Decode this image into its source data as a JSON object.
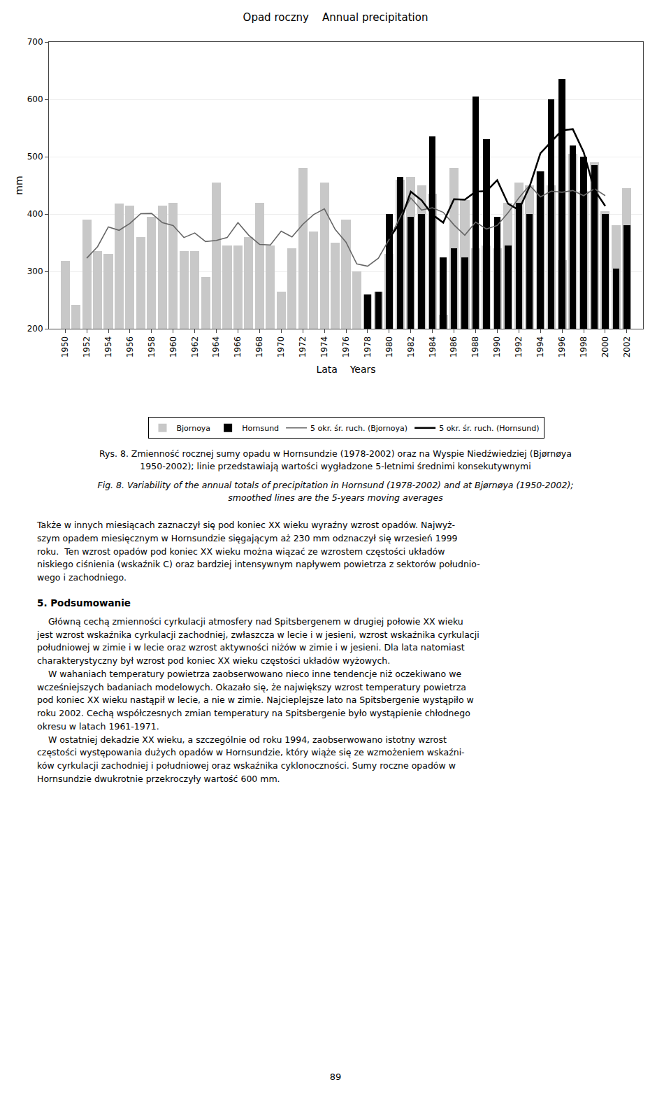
{
  "chart_data": {
    "type": "bar",
    "title": "Opad roczny    Annual precipitation",
    "xlabel": "Lata    Years",
    "ylabel": "mm",
    "xlim": [
      1948.5,
      2003.5
    ],
    "xticks": [
      1950,
      1952,
      1954,
      1956,
      1958,
      1960,
      1962,
      1964,
      1966,
      1968,
      1970,
      1972,
      1974,
      1976,
      1978,
      1980,
      1982,
      1984,
      1986,
      1988,
      1990,
      1992,
      1994,
      1996,
      1998,
      2000,
      2002
    ],
    "ylim": [
      200,
      700
    ],
    "yticks": [
      200,
      300,
      400,
      500,
      600,
      700
    ],
    "grid": "y",
    "legend": "bottom",
    "series": [
      {
        "name": "Bjornoya",
        "type": "bar",
        "color": "#c8c8c8",
        "x": [
          1950,
          1951,
          1952,
          1953,
          1954,
          1955,
          1956,
          1957,
          1958,
          1959,
          1960,
          1961,
          1962,
          1963,
          1964,
          1965,
          1966,
          1967,
          1968,
          1969,
          1970,
          1971,
          1972,
          1973,
          1974,
          1975,
          1976,
          1977,
          1978,
          1979,
          1980,
          1981,
          1982,
          1983,
          1984,
          1985,
          1986,
          1987,
          1988,
          1989,
          1990,
          1991,
          1992,
          1993,
          1994,
          1995,
          1996,
          1997,
          1998,
          1999,
          2000,
          2001,
          2002
        ],
        "values": [
          318,
          242,
          390,
          335,
          330,
          418,
          415,
          360,
          395,
          415,
          420,
          335,
          335,
          290,
          455,
          345,
          345,
          360,
          420,
          345,
          265,
          340,
          480,
          370,
          455,
          350,
          390,
          300,
          260,
          265,
          330,
          460,
          465,
          450,
          435,
          225,
          480,
          425,
          340,
          345,
          340,
          420,
          455,
          450,
          475,
          450,
          320,
          505,
          440,
          490,
          405,
          380,
          445
        ]
      },
      {
        "name": "Hornsund",
        "type": "bar",
        "color": "#000000",
        "x": [
          1978,
          1979,
          1980,
          1981,
          1982,
          1983,
          1984,
          1985,
          1986,
          1987,
          1988,
          1989,
          1990,
          1991,
          1992,
          1993,
          1994,
          1995,
          1996,
          1997,
          1998,
          1999,
          2000,
          2001,
          2002
        ],
        "values": [
          260,
          265,
          400,
          465,
          395,
          400,
          535,
          325,
          340,
          325,
          605,
          530,
          395,
          345,
          420,
          400,
          475,
          600,
          635,
          520,
          500,
          485,
          400,
          305,
          380
        ]
      },
      {
        "name": "5 okr. śr. ruch. (Bjornoya)",
        "type": "line",
        "color": "#666666",
        "x": [
          1950,
          1951,
          1952,
          1953,
          1954,
          1955,
          1956,
          1957,
          1958,
          1959,
          1960,
          1961,
          1962,
          1963,
          1964,
          1965,
          1966,
          1967,
          1968,
          1969,
          1970,
          1971,
          1972,
          1973,
          1974,
          1975,
          1976,
          1977,
          1978,
          1979,
          1980,
          1981,
          1982,
          1983,
          1984,
          1985,
          1986,
          1987,
          1988,
          1989,
          1990,
          1991,
          1992,
          1993,
          1994,
          1995,
          1996,
          1997,
          1998,
          1999,
          2000,
          2001,
          2002
        ],
        "values": [
          null,
          null,
          323,
          343,
          377.6,
          371.6,
          383.6,
          400.6,
          401,
          385,
          380,
          359,
          367,
          352,
          354,
          359,
          385,
          363,
          347,
          346,
          370,
          360,
          382,
          399,
          409,
          373,
          351,
          313,
          309,
          323,
          356,
          394,
          428,
          407,
          411,
          403,
          381,
          363,
          386,
          374,
          380,
          402,
          428,
          450,
          430,
          440,
          438,
          441,
          432,
          444,
          432,
          null,
          null
        ]
      },
      {
        "name": "5 okr. śr. ruch. (Hornsund)",
        "type": "line",
        "color": "#000000",
        "x": [
          1978,
          1979,
          1980,
          1981,
          1982,
          1983,
          1984,
          1985,
          1986,
          1987,
          1988,
          1989,
          1990,
          1991,
          1992,
          1993,
          1994,
          1995,
          1996,
          1997,
          1998,
          1999,
          2000,
          2001,
          2002
        ],
        "values": [
          null,
          null,
          357,
          385,
          439,
          424,
          399,
          385,
          426,
          425,
          439,
          440,
          459,
          418,
          407,
          448,
          506,
          526,
          546,
          548,
          508,
          442,
          414,
          null,
          null
        ]
      }
    ],
    "annotations": [
      "Rys. 8. Zmienność rocznej sumy opadu w Hornsundzie (1978-2002) oraz na Wyspie Niedźwiedziej (Bjørnøya\n1950-2002); linie przedstawiają wartości wygładzone 5-letnimi średnimi konsekutywnymi",
      "Fig. 8. Variability of the annual totals of precipitation in Hornsund (1978-2002) and at Bjørnøya (1950-2002);\nsmoothed lines are the 5-years moving averages",
      "Także w innych miesiącach zaznaczył się pod koniec XX wieku wyraźny wzrost opadów. Najwyż-\nszym opadem miesięcznym w Hornsundzie sięgającym aż 230 mm odznaczył się wrzesień 1999\nroku.  Ten wzrost opadów pod koniec XX wieku można wiązać ze wzrostem częstości układów\nniskiego ciśnienia (wskaźnik C) oraz bardziej intensywnym napływem powietrza z sektorów południo-\nwego i zachodniego.",
      "5. Podsumowanie",
      "    Główną cechą zmienności cyrkulacji atmosfery nad Spitsbergenem w drugiej połowie XX wieku\njest wzrost wskaźnika cyrkulacji zachodniej, zwłaszcza w lecie i w jesieni, wzrost wskaźnika cyrkulacji\npołudniowej w zimie i w lecie oraz wzrost aktywności niżów w zimie i w jesieni. Dla lata natomiast\ncharakterystyczny był wzrost pod koniec XX wieku częstości układów wyżowych.\n    W wahaniach temperatury powietrza zaobserwowano nieco inne tendencje niż oczekiwano we\nwcześniejszych badaniach modelowych. Okazało się, że największy wzrost temperatury powietrza\npod koniec XX wieku nastąpił w lecie, a nie w zimie. Najcieplejsze lato na Spitsbergenie wystąpiło w\nroku 2002. Cechą współczesnych zmian temperatury na Spitsbergenie było wystąpienie chłodnego\nokresu w latach 1961-1971.\n    W ostatniej dekadzie XX wieku, a szczególnie od roku 1994, zaobserwowano istotny wzrost\nczęstości występowania dużych opadów w Hornsundzie, który wiąże się ze wzmożeniem wskaźni-\nków cyrkulacji zachodniej i południowej oraz wskaźnika cyklonoczności. Sumy roczne opadów w\nHornsundzie dwukrotnie przekroczyły wartość 600 mm.",
      "89"
    ]
  }
}
